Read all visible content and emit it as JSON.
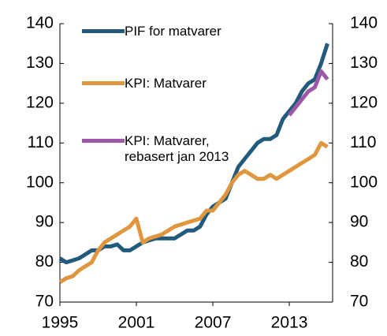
{
  "chart_data": {
    "type": "line",
    "x": [
      1995,
      1995.5,
      1996,
      1996.5,
      1997,
      1997.5,
      1998,
      1998.5,
      1999,
      1999.5,
      2000,
      2000.5,
      2001,
      2001.5,
      2002,
      2002.5,
      2003,
      2003.5,
      2004,
      2004.5,
      2005,
      2005.5,
      2006,
      2006.5,
      2007,
      2007.5,
      2008,
      2008.5,
      2009,
      2009.5,
      2010,
      2010.5,
      2011,
      2011.5,
      2012,
      2012.5,
      2013,
      2013.5,
      2014,
      2014.5,
      2015,
      2015.5,
      2016
    ],
    "series": [
      {
        "name": "PIF for matvarer",
        "color": "#215a7a",
        "values": [
          81,
          80,
          80.5,
          81,
          82,
          83,
          83,
          84,
          84,
          84.5,
          83,
          83,
          84,
          85,
          85.5,
          86,
          86,
          86,
          86,
          87,
          88,
          88,
          89,
          92,
          94,
          95,
          96,
          100,
          104,
          106,
          108,
          110,
          111,
          111,
          112,
          116,
          118,
          120,
          123,
          125,
          126,
          130,
          135
        ]
      },
      {
        "name": "KPI: Matvarer",
        "color": "#e0963e",
        "values": [
          75,
          76,
          76.5,
          78,
          79,
          80,
          83,
          85,
          86,
          87,
          88,
          89,
          91,
          85,
          86,
          86.5,
          87,
          88,
          89,
          89.5,
          90,
          90.5,
          91,
          93,
          93,
          95,
          97,
          100,
          102,
          103,
          102,
          101,
          101,
          102,
          101,
          102,
          103,
          104,
          105,
          106,
          107,
          110,
          109
        ]
      },
      {
        "name": "KPI: Matvarer, rebasert jan 2013",
        "color": "#9b59a8",
        "values": [
          null,
          null,
          null,
          null,
          null,
          null,
          null,
          null,
          null,
          null,
          null,
          null,
          null,
          null,
          null,
          null,
          null,
          null,
          null,
          null,
          null,
          null,
          null,
          null,
          null,
          null,
          null,
          null,
          null,
          null,
          null,
          null,
          null,
          null,
          null,
          null,
          117,
          119,
          121,
          123,
          124,
          128,
          126
        ]
      }
    ],
    "xlim": [
      1995,
      2016.4
    ],
    "xticks": [
      1995,
      2001,
      2007,
      2013
    ],
    "ylim": [
      70,
      140
    ],
    "yticks": [
      70,
      80,
      90,
      100,
      110,
      120,
      130,
      140
    ],
    "y2lim": [
      70,
      140
    ],
    "y2ticks": [
      70,
      80,
      90,
      100,
      110,
      120,
      130,
      140
    ]
  }
}
